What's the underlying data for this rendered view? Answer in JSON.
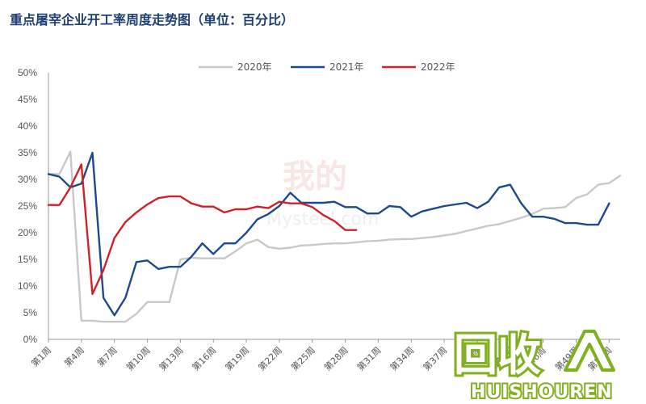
{
  "chart_data": {
    "type": "line",
    "title": "重点屠宰企业开工率周度走势图（单位：百分比）",
    "xlabel": "",
    "ylabel": "",
    "ylim": [
      0,
      50
    ],
    "y_ticks": [
      "0%",
      "5%",
      "10%",
      "15%",
      "20%",
      "25%",
      "30%",
      "35%",
      "40%",
      "45%",
      "50%"
    ],
    "x_tick_labels": [
      "第1周",
      "第4周",
      "第7周",
      "第10周",
      "第13周",
      "第16周",
      "第19周",
      "第22周",
      "第25周",
      "第28周",
      "第31周",
      "第34周",
      "第37周",
      "第40周",
      "第43周",
      "第46周",
      "第49周",
      "第52周"
    ],
    "x_tick_weeks": [
      1,
      4,
      7,
      10,
      13,
      16,
      19,
      22,
      25,
      28,
      31,
      34,
      37,
      40,
      43,
      46,
      49,
      52
    ],
    "legend_position": "top",
    "grid": false,
    "series": [
      {
        "name": "2020年",
        "color": "#c8c8c8",
        "x": [
          1,
          2,
          3,
          4,
          5,
          6,
          7,
          8,
          9,
          10,
          11,
          12,
          13,
          14,
          15,
          16,
          17,
          18,
          19,
          20,
          21,
          22,
          23,
          24,
          25,
          26,
          27,
          28,
          29,
          30,
          31,
          32,
          33,
          34,
          35,
          36,
          37,
          38,
          39,
          40,
          41,
          42,
          43,
          44,
          45,
          46,
          47,
          48,
          49,
          50,
          51,
          52,
          53
        ],
        "values": [
          31,
          31,
          35.2,
          3.5,
          3.5,
          3.3,
          3.3,
          3.3,
          4.8,
          7,
          7,
          7,
          15,
          15.3,
          15.2,
          15.2,
          15.2,
          16.5,
          18,
          18.7,
          17.3,
          17,
          17.2,
          17.6,
          17.7,
          17.9,
          18,
          18,
          18.2,
          18.4,
          18.5,
          18.7,
          18.8,
          18.8,
          19,
          19.2,
          19.5,
          19.8,
          20.3,
          20.8,
          21.3,
          21.6,
          22.2,
          22.8,
          23.5,
          24.5,
          24.6,
          24.8,
          26.5,
          27.2,
          29,
          29.3,
          30.7
        ]
      },
      {
        "name": "2021年",
        "color": "#1b4a8f",
        "x": [
          1,
          2,
          3,
          4,
          5,
          6,
          7,
          8,
          9,
          10,
          11,
          12,
          13,
          14,
          15,
          16,
          17,
          18,
          19,
          20,
          21,
          22,
          23,
          24,
          25,
          26,
          27,
          28,
          29,
          30,
          31,
          32,
          33,
          34,
          35,
          36,
          37,
          38,
          39,
          40,
          41,
          42,
          43,
          44,
          45,
          46,
          47,
          48,
          49,
          50,
          51,
          52
        ],
        "values": [
          31,
          30.5,
          28.5,
          29.2,
          35,
          7.8,
          4.5,
          7.8,
          14.5,
          14.8,
          13.2,
          13.6,
          13.6,
          15.5,
          18,
          16,
          18,
          18,
          20,
          22.5,
          23.5,
          25,
          27.5,
          25.6,
          25.6,
          25.6,
          25.8,
          24.8,
          24.8,
          23.6,
          23.6,
          25,
          24.8,
          23,
          24,
          24.5,
          25,
          25.3,
          25.6,
          24.6,
          25.8,
          28.5,
          29,
          25.5,
          23,
          23,
          22.6,
          21.8,
          21.8,
          21.5,
          21.5,
          25.5
        ]
      },
      {
        "name": "2022年",
        "color": "#d0202a",
        "x": [
          1,
          2,
          3,
          4,
          5,
          6,
          7,
          8,
          9,
          10,
          11,
          12,
          13,
          14,
          15,
          16,
          17,
          18,
          19,
          20,
          21,
          22,
          23,
          24,
          25,
          26,
          27,
          28,
          29
        ],
        "values": [
          25.2,
          25.2,
          28.5,
          32.8,
          8.5,
          13,
          19,
          22,
          23.8,
          25.3,
          26.5,
          26.8,
          26.8,
          25.5,
          24.9,
          24.9,
          23.8,
          24.4,
          24.4,
          24.9,
          24.6,
          25.8,
          25.5,
          25.5,
          24.8,
          23.3,
          22.2,
          20.5,
          20.5
        ]
      }
    ]
  },
  "watermark": {
    "center_text": "我的",
    "center_subtext": "Mysteel.com",
    "logo_text": "回收",
    "logo_subtext": "HUISHOUREN"
  }
}
